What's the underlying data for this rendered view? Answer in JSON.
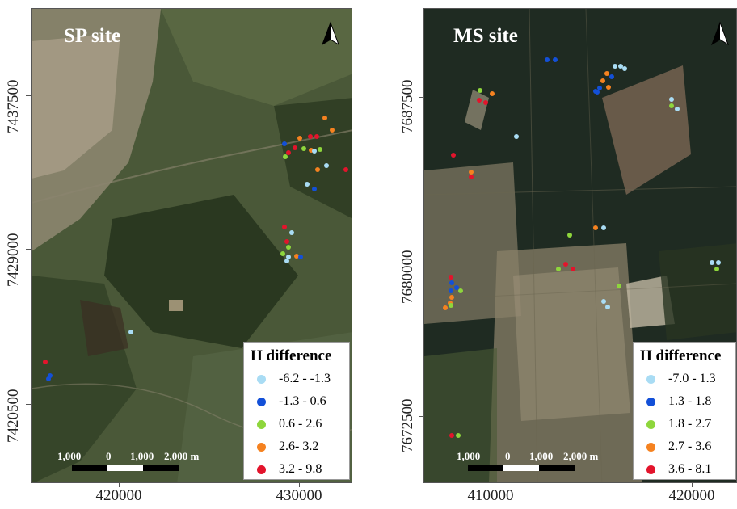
{
  "left_map": {
    "title": "SP site",
    "legend_title": "H difference",
    "legend": [
      {
        "label": "-6.2 - -1.3",
        "color": "#a9dcf4"
      },
      {
        "label": "-1.3 - 0.6",
        "color": "#1350d8"
      },
      {
        "label": "0.6 - 2.6",
        "color": "#8ed63c"
      },
      {
        "label": "2.6- 3.2",
        "color": "#f58220"
      },
      {
        "label": "3.2 - 9.8",
        "color": "#e3142c"
      }
    ],
    "scale": {
      "labels": [
        "1,000",
        "0",
        "1,000",
        "2,000 m"
      ]
    },
    "y_ticks": [
      "7437500",
      "7429000",
      "7420500"
    ],
    "x_ticks": [
      "420000",
      "430000"
    ],
    "north_arrow_icon": "north-arrow-icon"
  },
  "right_map": {
    "title": "MS site",
    "legend_title": "H difference",
    "legend": [
      {
        "label": "-7.0 - 1.3",
        "color": "#a9dcf4"
      },
      {
        "label": "1.3 - 1.8",
        "color": "#1350d8"
      },
      {
        "label": "1.8 - 2.7",
        "color": "#8ed63c"
      },
      {
        "label": "2.7 - 3.6",
        "color": "#f58220"
      },
      {
        "label": "3.6 - 8.1",
        "color": "#e3142c"
      }
    ],
    "scale": {
      "labels": [
        "1,000",
        "0",
        "1,000",
        "2,000 m"
      ]
    },
    "y_ticks": [
      "7687500",
      "7680000",
      "7672500"
    ],
    "x_ticks": [
      "410000",
      "420000"
    ],
    "north_arrow_icon": "north-arrow-icon"
  }
}
